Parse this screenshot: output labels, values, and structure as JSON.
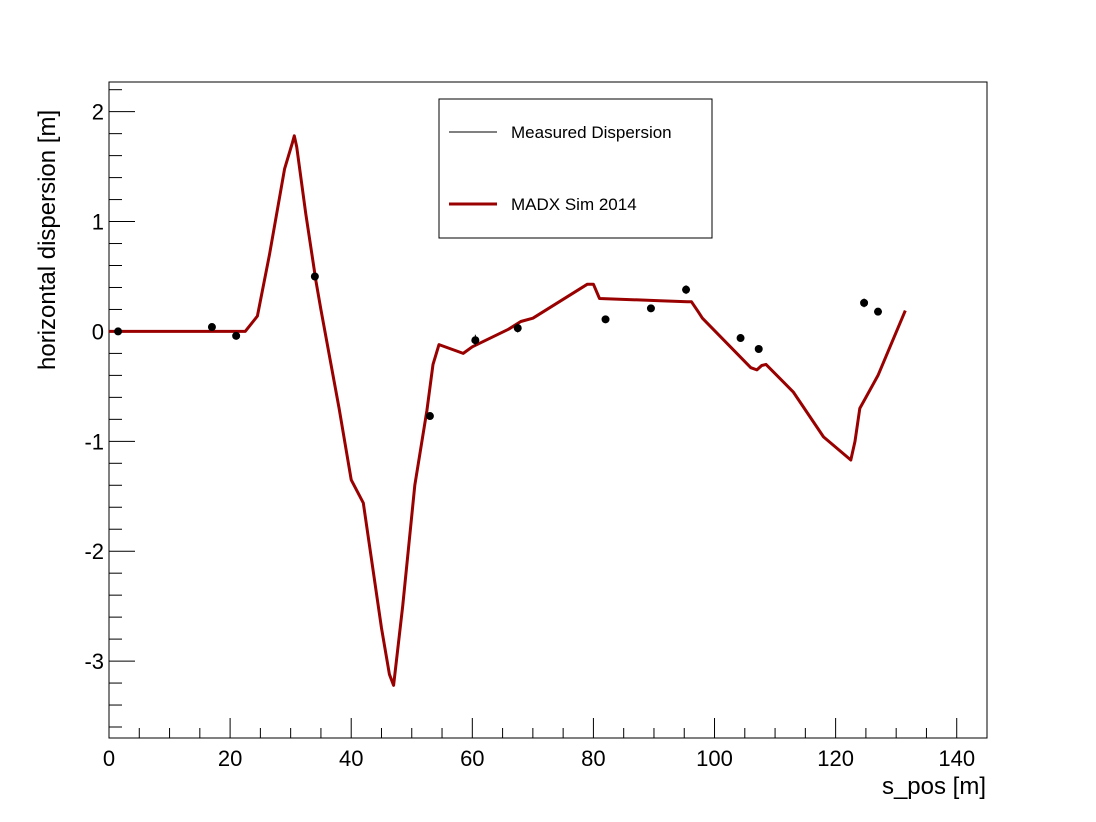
{
  "chart_data": {
    "type": "line",
    "xlabel": "s_pos [m]",
    "ylabel": "horizontal dispersion [m]",
    "xlim": [
      0,
      145
    ],
    "ylim": [
      -3.7,
      2.27
    ],
    "x_ticks": [
      "0",
      "20",
      "40",
      "60",
      "80",
      "100",
      "120",
      "140"
    ],
    "y_ticks": [
      "-3",
      "-2",
      "-1",
      "0",
      "1",
      "2"
    ],
    "legend": {
      "placement": "top-center",
      "entries": [
        "Measured Dispersion",
        "MADX Sim 2014"
      ]
    },
    "series": [
      {
        "name": "Measured Dispersion",
        "kind": "points-with-errors",
        "color": "#000000",
        "points": [
          {
            "x": 1.5,
            "y": 0.0,
            "err": 0.02
          },
          {
            "x": 17.0,
            "y": 0.04,
            "err": 0.02
          },
          {
            "x": 21.0,
            "y": -0.04,
            "err": 0.02
          },
          {
            "x": 34.0,
            "y": 0.5,
            "err": 0.02
          },
          {
            "x": 53.0,
            "y": -0.77,
            "err": 0.02
          },
          {
            "x": 60.5,
            "y": -0.08,
            "err": 0.05
          },
          {
            "x": 67.5,
            "y": 0.03,
            "err": 0.04
          },
          {
            "x": 82.0,
            "y": 0.11,
            "err": 0.02
          },
          {
            "x": 89.5,
            "y": 0.21,
            "err": 0.02
          },
          {
            "x": 95.3,
            "y": 0.38,
            "err": 0.04
          },
          {
            "x": 104.3,
            "y": -0.06,
            "err": 0.02
          },
          {
            "x": 107.3,
            "y": -0.16,
            "err": 0.02
          },
          {
            "x": 124.7,
            "y": 0.26,
            "err": 0.04
          },
          {
            "x": 127.0,
            "y": 0.18,
            "err": 0.02
          }
        ]
      },
      {
        "name": "MADX Sim 2014",
        "kind": "line",
        "color": "#990000",
        "x": [
          0,
          22.5,
          24.5,
          26.5,
          29,
          30.3,
          30.6,
          31,
          32.5,
          34.2,
          35,
          38,
          40,
          42,
          45,
          46.3,
          47,
          48.5,
          50.5,
          52.5,
          53.5,
          54.5,
          58.5,
          60,
          66,
          68,
          70,
          79,
          80,
          81,
          91,
          95.5,
          96.2,
          97.3,
          98,
          106,
          107,
          107.8,
          108.5,
          113,
          118,
          122.5,
          123.2,
          124,
          125,
          127,
          131.5
        ],
        "y": [
          0,
          0,
          0.14,
          0.7,
          1.48,
          1.72,
          1.78,
          1.68,
          1.07,
          0.45,
          0.2,
          -0.7,
          -1.35,
          -1.56,
          -2.7,
          -3.12,
          -3.22,
          -2.5,
          -1.4,
          -0.72,
          -0.3,
          -0.12,
          -0.2,
          -0.14,
          0.02,
          0.09,
          0.12,
          0.43,
          0.43,
          0.3,
          0.28,
          0.27,
          0.27,
          0.18,
          0.12,
          -0.33,
          -0.35,
          -0.31,
          -0.3,
          -0.55,
          -0.96,
          -1.17,
          -1.0,
          -0.7,
          -0.6,
          -0.4,
          0.19
        ]
      }
    ]
  }
}
